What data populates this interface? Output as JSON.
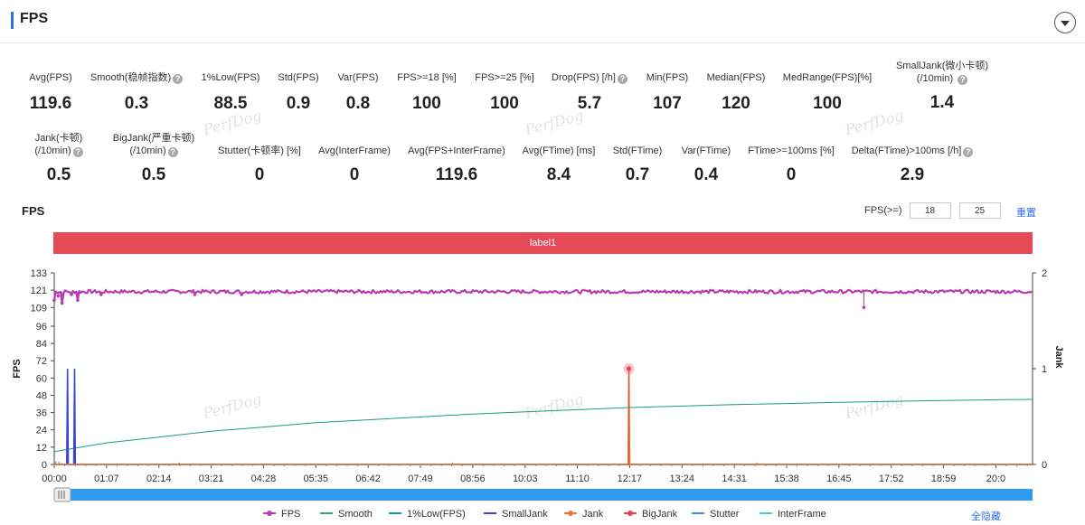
{
  "header": {
    "title": "FPS"
  },
  "metrics_row1": [
    {
      "label": "Avg(FPS)",
      "value": "119.6",
      "help": false,
      "x": 56
    },
    {
      "label": "Smooth(稳帧指数)",
      "value": "0.3",
      "help": true,
      "x": 151
    },
    {
      "label": "1%Low(FPS)",
      "value": "88.5",
      "help": false,
      "x": 255
    },
    {
      "label": "Std(FPS)",
      "value": "0.9",
      "help": false,
      "x": 330
    },
    {
      "label": "Var(FPS)",
      "value": "0.8",
      "help": false,
      "x": 396
    },
    {
      "label": "FPS>=18 [%]",
      "value": "100",
      "help": false,
      "x": 472
    },
    {
      "label": "FPS>=25 [%]",
      "value": "100",
      "help": false,
      "x": 558
    },
    {
      "label": "Drop(FPS) [/h]",
      "value": "5.7",
      "help": true,
      "x": 652
    },
    {
      "label": "Min(FPS)",
      "value": "107",
      "help": false,
      "x": 738
    },
    {
      "label": "Median(FPS)",
      "value": "120",
      "help": false,
      "x": 814
    },
    {
      "label": "MedRange(FPS)[%]",
      "value": "100",
      "help": false,
      "x": 915
    }
  ],
  "metric_smalljank": {
    "label_line1": "SmallJank(微小卡顿)",
    "label_line2": "(/10min)",
    "value": "1.4"
  },
  "metrics_row2": [
    {
      "label_line1": "Jank(卡顿)",
      "label_line2": "(/10min)",
      "value": "0.5",
      "help": true,
      "x": 65
    },
    {
      "label_line1": "BigJank(严重卡顿)",
      "label_line2": "(/10min)",
      "value": "0.5",
      "help": true,
      "x": 170
    },
    {
      "label_line1": "",
      "label_line2": "Stutter(卡顿率) [%]",
      "value": "0",
      "help": false,
      "x": 287
    },
    {
      "label_line1": "",
      "label_line2": "Avg(InterFrame)",
      "value": "0",
      "help": false,
      "x": 392
    },
    {
      "label_line1": "",
      "label_line2": "Avg(FPS+InterFrame)",
      "value": "119.6",
      "help": false,
      "x": 505
    },
    {
      "label_line1": "",
      "label_line2": "Avg(FTime) [ms]",
      "value": "8.4",
      "help": false,
      "x": 618
    },
    {
      "label_line1": "",
      "label_line2": "Std(FTime)",
      "value": "0.7",
      "help": false,
      "x": 705
    },
    {
      "label_line1": "",
      "label_line2": "Var(FTime)",
      "value": "0.4",
      "help": false,
      "x": 781
    },
    {
      "label_line1": "",
      "label_line2": "FTime>=100ms [%]",
      "value": "0",
      "help": false,
      "x": 875
    },
    {
      "label_line1": "",
      "label_line2": "Delta(FTime)>100ms [/h]",
      "value": "2.9",
      "help": true,
      "x": 1009
    }
  ],
  "watermark": "PerfDog",
  "chart_section": {
    "title": "FPS",
    "fps_threshold_label": "FPS(>=)",
    "threshold_1": "18",
    "threshold_2": "25",
    "reset_label": "重置",
    "band_label": "label1",
    "hide_all_label": "全隐藏"
  },
  "chart_data": {
    "type": "line",
    "xlabel": "",
    "ylabel": "FPS",
    "y2label": "Jank",
    "ylim": [
      0,
      133
    ],
    "y_ticks": [
      0,
      12,
      24,
      36,
      48,
      60,
      72,
      84,
      96,
      109,
      121,
      133
    ],
    "y2lim": [
      0,
      2
    ],
    "y2_ticks": [
      0,
      1,
      2
    ],
    "x_ticks": [
      "00:00",
      "01:07",
      "02:14",
      "03:21",
      "04:28",
      "05:35",
      "06:42",
      "07:49",
      "08:56",
      "10:03",
      "11:10",
      "12:17",
      "13:24",
      "14:31",
      "15:38",
      "16:45",
      "17:52",
      "18:59",
      "20:0"
    ],
    "x_range_sec": [
      0,
      1253
    ],
    "legend_position": "bottom",
    "series": [
      {
        "name": "FPS",
        "color": "#b83cb3",
        "axis": "left",
        "baseline": 120,
        "points": [
          [
            0,
            114
          ],
          [
            5,
            117
          ],
          [
            10,
            112
          ],
          [
            15,
            119
          ],
          [
            22,
            118
          ],
          [
            30,
            114
          ],
          [
            60,
            118
          ],
          [
            180,
            118
          ],
          [
            240,
            118
          ],
          [
            1000,
            119
          ],
          [
            1037,
            109
          ],
          [
            1200,
            119
          ]
        ]
      },
      {
        "name": "Smooth",
        "color": "#3aa757",
        "axis": "right",
        "points": [
          [
            0,
            0
          ],
          [
            1253,
            0
          ]
        ]
      },
      {
        "name": "1%Low(FPS)",
        "color": "#169c88",
        "axis": "left",
        "points": [
          [
            0,
            9
          ],
          [
            67,
            15
          ],
          [
            134,
            19
          ],
          [
            201,
            23
          ],
          [
            268,
            26
          ],
          [
            335,
            29
          ],
          [
            402,
            31
          ],
          [
            469,
            33
          ],
          [
            536,
            35
          ],
          [
            603,
            36.5
          ],
          [
            670,
            38
          ],
          [
            737,
            39.5
          ],
          [
            804,
            40.5
          ],
          [
            871,
            41.5
          ],
          [
            938,
            42.3
          ],
          [
            1005,
            43.1
          ],
          [
            1072,
            43.8
          ],
          [
            1139,
            44.4
          ],
          [
            1206,
            44.9
          ],
          [
            1253,
            45.2
          ]
        ]
      },
      {
        "name": "SmallJank",
        "color": "#3b46d8",
        "axis": "right",
        "points": [
          [
            0,
            0
          ],
          [
            16,
            0
          ],
          [
            17,
            1
          ],
          [
            18,
            0
          ],
          [
            25,
            0
          ],
          [
            26,
            1
          ],
          [
            27,
            0
          ],
          [
            1253,
            0
          ]
        ]
      },
      {
        "name": "Jank",
        "color": "#f0782d",
        "axis": "right",
        "points": [
          [
            0,
            0
          ],
          [
            735,
            0
          ],
          [
            736,
            1
          ],
          [
            737,
            0
          ],
          [
            1253,
            0
          ]
        ]
      },
      {
        "name": "BigJank",
        "color": "#e8454c",
        "axis": "right",
        "points": [
          [
            0,
            0
          ],
          [
            735,
            0
          ],
          [
            736,
            1
          ],
          [
            737,
            0
          ],
          [
            1253,
            0
          ]
        ]
      },
      {
        "name": "Stutter",
        "color": "#3f8cf0",
        "axis": "right",
        "points": [
          [
            0,
            0
          ],
          [
            1253,
            0
          ]
        ]
      },
      {
        "name": "InterFrame",
        "color": "#3ec9d6",
        "axis": "left",
        "points": [
          [
            0,
            0
          ],
          [
            1253,
            0
          ]
        ]
      }
    ]
  }
}
